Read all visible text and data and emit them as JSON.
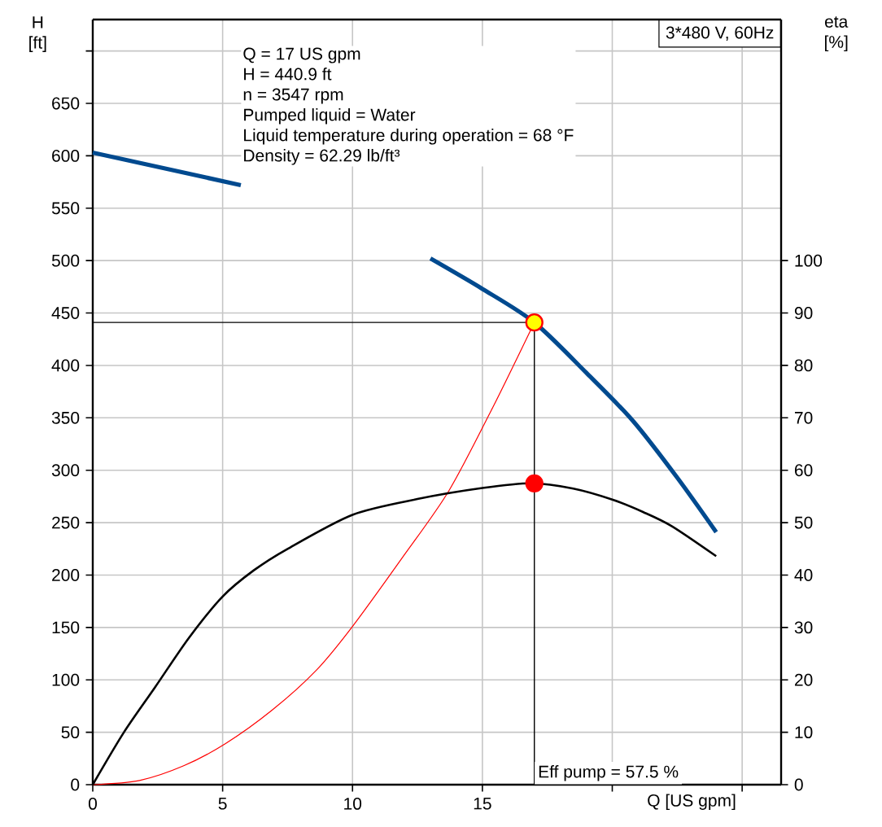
{
  "chart_data": {
    "type": "line",
    "title": "3*480 V, 60Hz",
    "xlabel": "Q [US gpm]",
    "ylabel": "H [ft]",
    "y2label": "eta [%]",
    "annotations": [
      "Q = 17 US gpm",
      "H = 440.9 ft",
      "n = 3547 rpm",
      "Pumped liquid = Water",
      "Liquid temperature during operation = 68 °F",
      "Density = 62.29 lb/ft³",
      "Eff pump = 57.5 %"
    ],
    "xlim": [
      0,
      26.5
    ],
    "xticks": [
      0,
      5,
      10,
      15,
      {
        "value": 20,
        "label": null
      },
      {
        "value": 25,
        "label": null
      }
    ],
    "ylim": [
      0,
      730
    ],
    "yticks": [
      0,
      50,
      100,
      150,
      200,
      250,
      300,
      350,
      400,
      450,
      500,
      550,
      600,
      650,
      {
        "value": 700,
        "label": null
      }
    ],
    "y2lim": [
      0,
      146
    ],
    "y2ticks": [
      0,
      10,
      20,
      30,
      40,
      50,
      60,
      70,
      80,
      90,
      100
    ],
    "grid": true,
    "ref_lines": [
      {
        "axis": "x",
        "value": 17,
        "color": "#000000"
      },
      {
        "axis": "y",
        "value": 441,
        "color": "#000000"
      }
    ],
    "series": [
      {
        "color": "#004a8f",
        "x": [
          0,
          5.7,
          9,
          13,
          15,
          17,
          19,
          20.8,
          22.5,
          24
        ],
        "values": [
          603,
          572,
          null,
          502,
          473,
          441,
          393,
          347,
          293,
          241
        ]
      },
      {
        "color": "#ff0000",
        "x": [
          0,
          1.8,
          3.5,
          5.1,
          6.9,
          8.6,
          10,
          11.9,
          13.7,
          15.4,
          17
        ],
        "values": [
          0,
          4,
          18,
          39,
          71,
          109,
          151,
          216,
          280,
          360,
          441
        ]
      },
      {
        "axis": "y2",
        "color": "#000000",
        "x": [
          0,
          1.2,
          2.4,
          3.7,
          5,
          6.2,
          7.5,
          10,
          12.5,
          15,
          16.9,
          18.5,
          20,
          21.2,
          22.3,
          24
        ],
        "values": [
          0,
          10,
          18.6,
          28,
          35.9,
          40.9,
          45,
          51.5,
          54.5,
          56.6,
          57.5,
          56.5,
          54.4,
          52,
          49.3,
          43.6
        ]
      },
      {
        "type": "scatter",
        "marker": "circle",
        "color": "#ffff00",
        "x": [
          17
        ],
        "values": [
          441
        ]
      },
      {
        "type": "scatter",
        "marker": "circle",
        "axis": "y2",
        "color": "#ff0000",
        "x": [
          17
        ],
        "values": [
          57.5
        ]
      }
    ]
  }
}
